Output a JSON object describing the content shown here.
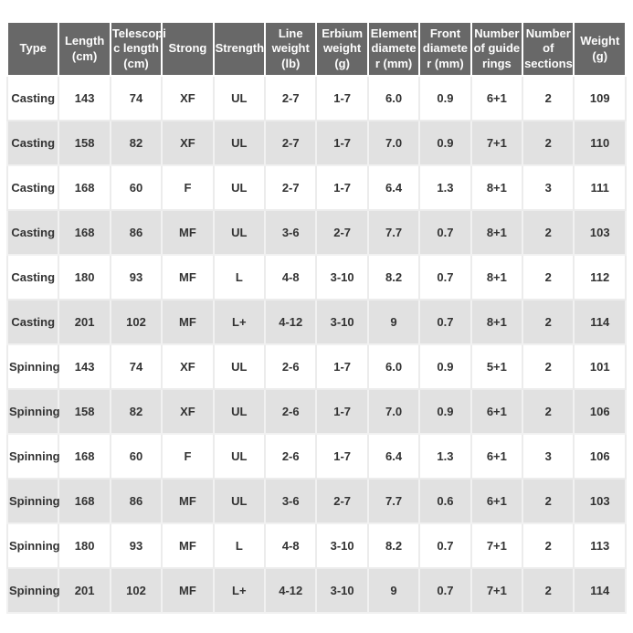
{
  "colors": {
    "header_bg": "#686868",
    "header_text": "#fdfdfd",
    "row_bg": "#ffffff",
    "row_alt_bg": "#e1e1e1",
    "cell_text": "#333333",
    "cell_border": "#ececec"
  },
  "table": {
    "columns": [
      {
        "id": "type",
        "label": "Type"
      },
      {
        "id": "length-cm",
        "label": "Length\n(cm)"
      },
      {
        "id": "telescopic-length-cm",
        "label": "Telescopi\nc length\n(cm)"
      },
      {
        "id": "strong",
        "label": "Strong"
      },
      {
        "id": "strength",
        "label": "Strength"
      },
      {
        "id": "line-weight-lb",
        "label": "Line\nweight\n(lb)"
      },
      {
        "id": "erbium-weight-g",
        "label": "Erbium\nweight\n(g)"
      },
      {
        "id": "element-diameter-mm",
        "label": "Element\ndiamete\nr (mm)"
      },
      {
        "id": "front-diameter-mm",
        "label": "Front\ndiamete\nr (mm)"
      },
      {
        "id": "guide-rings",
        "label": "Number\nof guide\nrings"
      },
      {
        "id": "sections",
        "label": "Number\nof\nsections"
      },
      {
        "id": "weight-g",
        "label": "Weight\n(g)"
      }
    ],
    "rows": [
      [
        "Casting",
        "143",
        "74",
        "XF",
        "UL",
        "2-7",
        "1-7",
        "6.0",
        "0.9",
        "6+1",
        "2",
        "109"
      ],
      [
        "Casting",
        "158",
        "82",
        "XF",
        "UL",
        "2-7",
        "1-7",
        "7.0",
        "0.9",
        "7+1",
        "2",
        "110"
      ],
      [
        "Casting",
        "168",
        "60",
        "F",
        "UL",
        "2-7",
        "1-7",
        "6.4",
        "1.3",
        "8+1",
        "3",
        "111"
      ],
      [
        "Casting",
        "168",
        "86",
        "MF",
        "UL",
        "3-6",
        "2-7",
        "7.7",
        "0.7",
        "8+1",
        "2",
        "103"
      ],
      [
        "Casting",
        "180",
        "93",
        "MF",
        "L",
        "4-8",
        "3-10",
        "8.2",
        "0.7",
        "8+1",
        "2",
        "112"
      ],
      [
        "Casting",
        "201",
        "102",
        "MF",
        "L+",
        "4-12",
        "3-10",
        "9",
        "0.7",
        "8+1",
        "2",
        "114"
      ],
      [
        "Spinning",
        "143",
        "74",
        "XF",
        "UL",
        "2-6",
        "1-7",
        "6.0",
        "0.9",
        "5+1",
        "2",
        "101"
      ],
      [
        "Spinning",
        "158",
        "82",
        "XF",
        "UL",
        "2-6",
        "1-7",
        "7.0",
        "0.9",
        "6+1",
        "2",
        "106"
      ],
      [
        "Spinning",
        "168",
        "60",
        "F",
        "UL",
        "2-6",
        "1-7",
        "6.4",
        "1.3",
        "6+1",
        "3",
        "106"
      ],
      [
        "Spinning",
        "168",
        "86",
        "MF",
        "UL",
        "3-6",
        "2-7",
        "7.7",
        "0.6",
        "6+1",
        "2",
        "103"
      ],
      [
        "Spinning",
        "180",
        "93",
        "MF",
        "L",
        "4-8",
        "3-10",
        "8.2",
        "0.7",
        "7+1",
        "2",
        "113"
      ],
      [
        "Spinning",
        "201",
        "102",
        "MF",
        "L+",
        "4-12",
        "3-10",
        "9",
        "0.7",
        "7+1",
        "2",
        "114"
      ]
    ]
  }
}
